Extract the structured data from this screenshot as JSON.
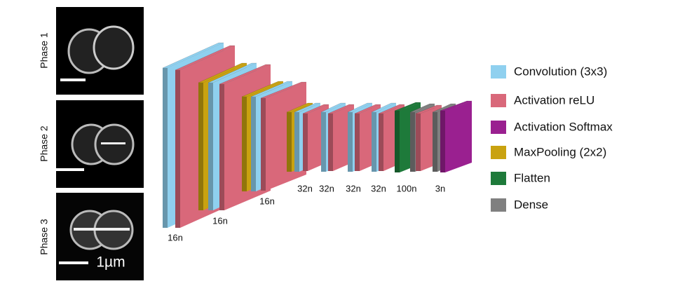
{
  "panels": [
    {
      "label": "Phase 1"
    },
    {
      "label": "Phase 2"
    },
    {
      "label": "Phase 3"
    }
  ],
  "scale_bar": "1µm",
  "layer_labels": [
    "16n",
    "16n",
    "16n",
    "32n",
    "32n",
    "32n",
    "32n",
    "100n",
    "3n"
  ],
  "legend": [
    {
      "label": "Convolution (3x3)",
      "color": "#8fd0ef"
    },
    {
      "label": "Activation reLU",
      "color": "#d9687a"
    },
    {
      "label": "Activation Softmax",
      "color": "#9a2090"
    },
    {
      "label": "MaxPooling (2x2)",
      "color": "#c9a210"
    },
    {
      "label": "Flatten",
      "color": "#1e7a3a"
    },
    {
      "label": "Dense",
      "color": "#808080"
    }
  ]
}
